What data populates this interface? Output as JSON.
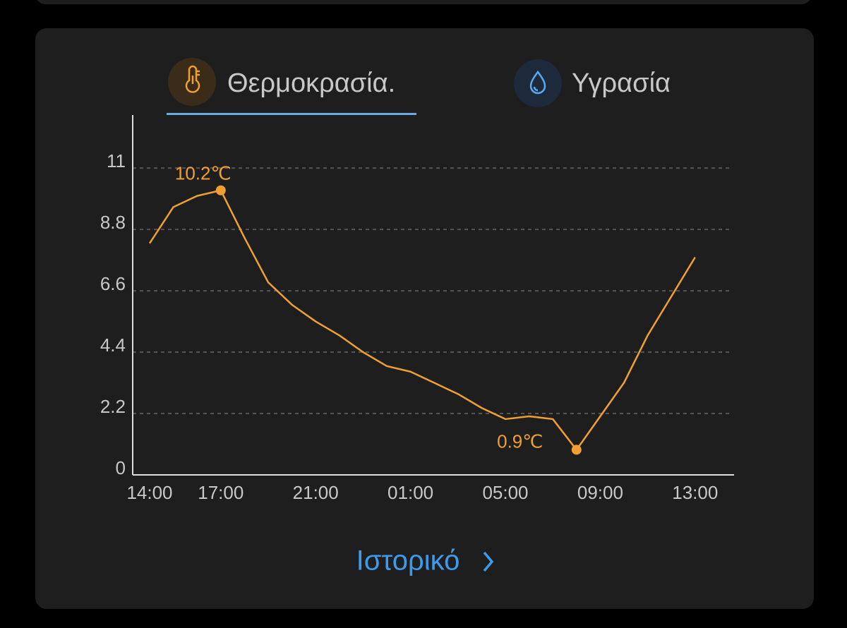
{
  "tabs": [
    {
      "label": "Θερμοκρασία."
    },
    {
      "label": "Υγρασία"
    }
  ],
  "chart_data": {
    "type": "line",
    "categories": [
      "14:00",
      null,
      null,
      "17:00",
      null,
      null,
      null,
      "21:00",
      null,
      null,
      null,
      "01:00",
      null,
      null,
      null,
      "05:00",
      null,
      null,
      null,
      "09:00",
      null,
      null,
      null,
      "13:00"
    ],
    "series": [
      {
        "color": "#f0a030",
        "values": [
          8.3,
          9.6,
          10.0,
          10.2,
          8.5,
          6.9,
          6.1,
          5.5,
          5.0,
          4.4,
          3.9,
          3.7,
          3.3,
          2.9,
          2.4,
          2.0,
          2.1,
          2.0,
          0.9,
          2.1,
          3.3,
          5.0,
          6.4,
          7.8
        ],
        "value_labels": [
          null,
          null,
          null,
          "10.2℃",
          null,
          null,
          null,
          null,
          null,
          null,
          null,
          null,
          null,
          null,
          null,
          null,
          null,
          null,
          "0.9℃",
          null,
          null,
          null,
          null,
          null
        ]
      }
    ],
    "ylim": [
      0,
      12.9
    ],
    "yticks": [
      0,
      2.2,
      4.4,
      6.6,
      8.8,
      11
    ],
    "grid": true
  },
  "link": {
    "label": "Ιστορικό"
  }
}
